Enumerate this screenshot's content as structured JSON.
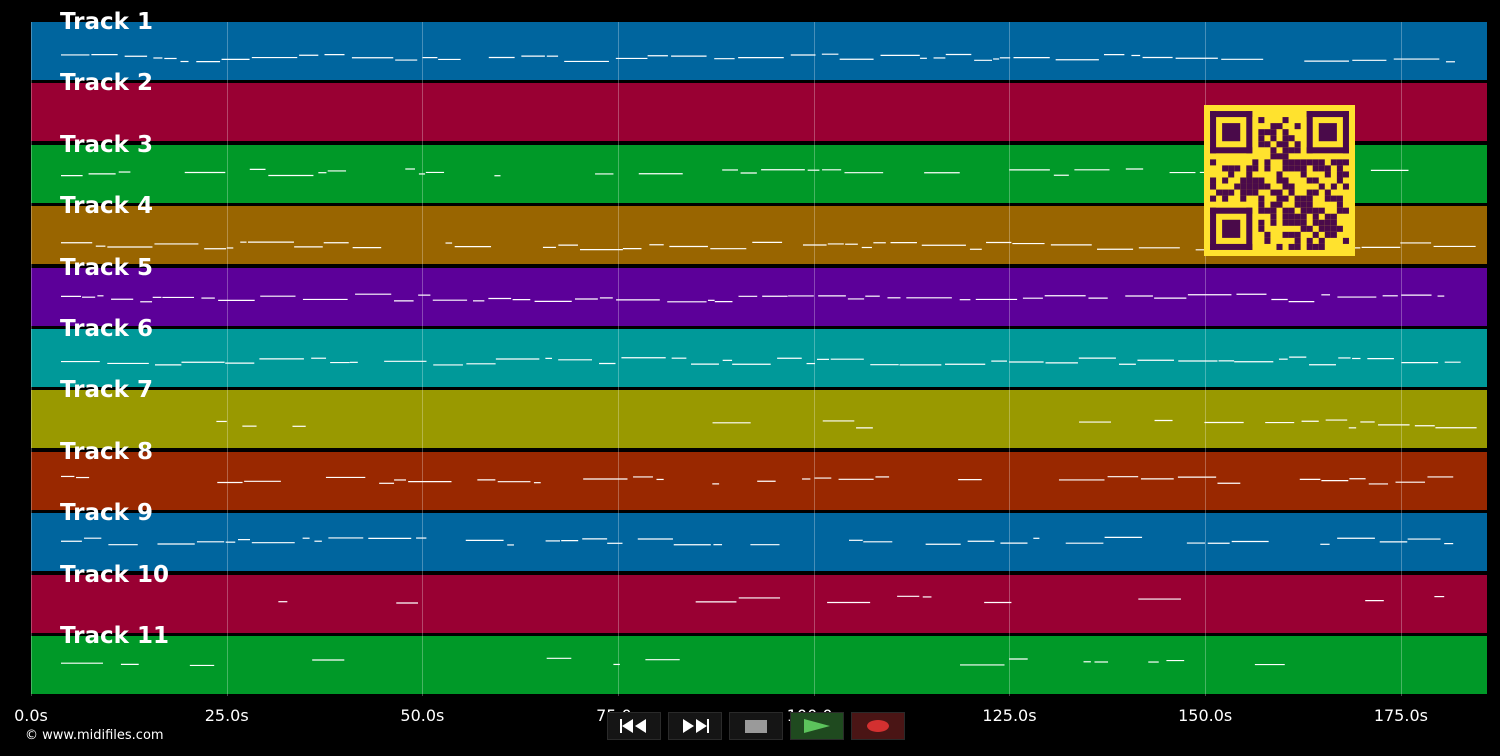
{
  "tracks": [
    {
      "label": "Track 1",
      "color": "#00659e"
    },
    {
      "label": "Track 2",
      "color": "#990033"
    },
    {
      "label": "Track 3",
      "color": "#009928"
    },
    {
      "label": "Track 4",
      "color": "#996500"
    },
    {
      "label": "Track 5",
      "color": "#5c0099"
    },
    {
      "label": "Track 6",
      "color": "#009999"
    },
    {
      "label": "Track 7",
      "color": "#999900"
    },
    {
      "label": "Track 8",
      "color": "#992800"
    },
    {
      "label": "Track 9",
      "color": "#00659e"
    },
    {
      "label": "Track 10",
      "color": "#990033"
    },
    {
      "label": "Track 11",
      "color": "#009928"
    }
  ],
  "timeline": {
    "max_seconds": 186,
    "ticks": [
      "0.0s",
      "25.0s",
      "50.0s",
      "75.0s",
      "100.0s",
      "125.0s",
      "150.0s",
      "175.0s"
    ],
    "tick_seconds": [
      0,
      25,
      50,
      75,
      100,
      125,
      150,
      175
    ]
  },
  "transport": {
    "rewind_icon": "rewind-icon",
    "fast_forward_icon": "fast-forward-icon",
    "stop_icon": "stop-icon",
    "play_icon": "play-icon",
    "record_icon": "record-icon",
    "play_color": "#5cc35c",
    "record_color": "#d33030"
  },
  "qr_color": "#ffe22e",
  "copyright": "© www.midifiles.com"
}
